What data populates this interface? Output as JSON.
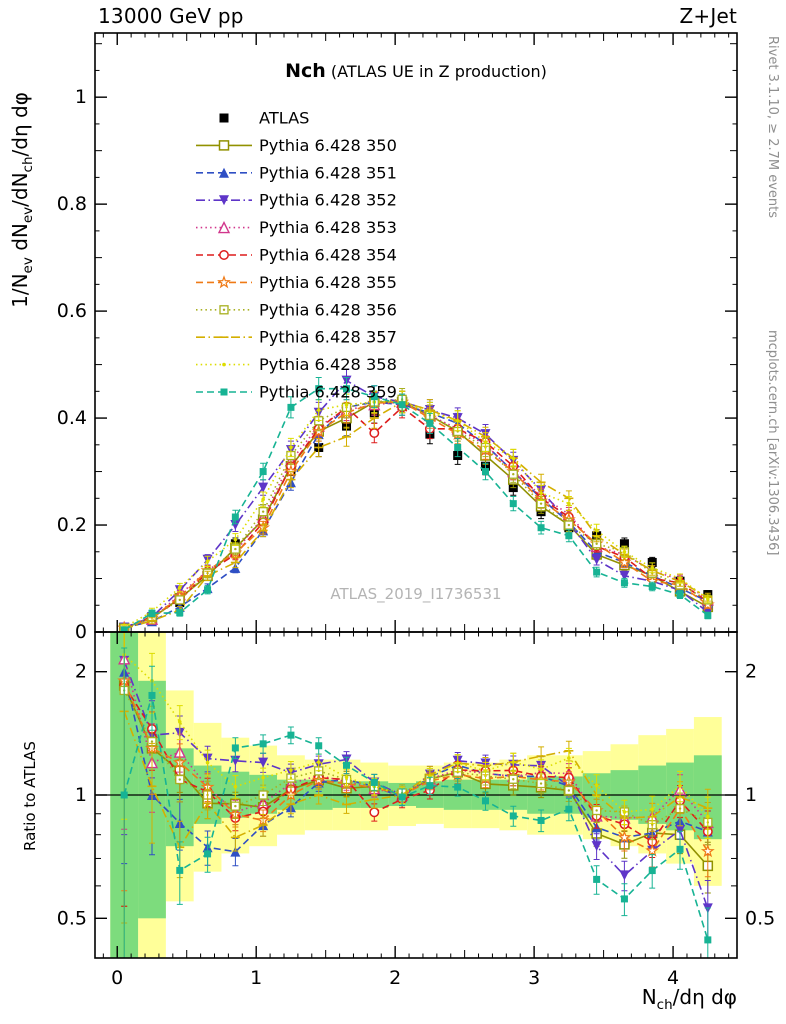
{
  "header": {
    "left": "13000 GeV pp",
    "right": "Z+Jet"
  },
  "title": {
    "main": "Nch",
    "sub": "(ATLAS UE in Z production)"
  },
  "watermark": "ATLAS_2019_I1736531",
  "side_notes": {
    "top": "Rivet 3.1.10, ≥ 2.7M events",
    "bottom": "mcplots.cern.ch [arXiv:1306.3436]"
  },
  "colors": {
    "band_yellow": "#ffff99",
    "band_green": "#7ddc7d",
    "frame": "#000000",
    "watermark": "#b4b4b4",
    "side_note": "#8f8f8f"
  },
  "axes": {
    "x": {
      "title_segments": [
        {
          "t": "N"
        },
        {
          "t": "ch",
          "sub": true
        },
        {
          "t": "/dη dφ"
        }
      ],
      "ticks": [
        0,
        1,
        2,
        3,
        4
      ],
      "min": -0.16,
      "max": 4.46
    },
    "y": {
      "title_segments": [
        {
          "t": "1/N"
        },
        {
          "t": "ev",
          "sub": true
        },
        {
          "t": " dN"
        },
        {
          "t": "ev",
          "sub": true
        },
        {
          "t": "/dN"
        },
        {
          "t": "ch",
          "sub": true
        },
        {
          "t": "/dη dφ"
        }
      ],
      "ticks": [
        0,
        0.2,
        0.4,
        0.6,
        0.8,
        1
      ],
      "min": 0,
      "max": 1.12
    },
    "ratio": {
      "title": "Ratio to ATLAS",
      "ticks": [
        0.5,
        1,
        2
      ],
      "minor": [
        0.6,
        0.7,
        0.8,
        0.9
      ],
      "min": 0.4,
      "max": 2.5
    }
  },
  "chart_data": {
    "type": "line",
    "title": "Nch (ATLAS UE in Z production)",
    "xlabel": "N_ch/dη dφ",
    "ylabel": "1/N_ev dN_ev/dN_ch/dη dφ",
    "ratio_label": "Ratio to ATLAS",
    "error_min": 0.005,
    "error_frac": 0.035,
    "x": [
      0.05,
      0.25,
      0.45,
      0.65,
      0.85,
      1.05,
      1.25,
      1.45,
      1.65,
      1.85,
      2.05,
      2.25,
      2.45,
      2.65,
      2.85,
      3.05,
      3.25,
      3.45,
      3.65,
      3.85,
      4.05,
      4.25
    ],
    "atlas": {
      "label": "ATLAS",
      "color": "#000000",
      "marker": "square-filled",
      "line": "none",
      "values": [
        0.004,
        0.02,
        0.055,
        0.11,
        0.165,
        0.225,
        0.3,
        0.345,
        0.385,
        0.41,
        0.43,
        0.37,
        0.33,
        0.31,
        0.27,
        0.225,
        0.195,
        0.18,
        0.165,
        0.13,
        0.095,
        0.07
      ]
    },
    "series": [
      {
        "label": "Pythia 6.428 350",
        "color": "#919100",
        "marker": "square-open",
        "line": "solid",
        "values": [
          0.0074,
          0.026,
          0.063,
          0.105,
          0.157,
          0.21,
          0.31,
          0.375,
          0.4,
          0.43,
          0.43,
          0.405,
          0.375,
          0.33,
          0.285,
          0.235,
          0.2,
          0.145,
          0.125,
          0.105,
          0.076,
          0.047
        ]
      },
      {
        "label": "Pythia 6.428 351",
        "color": "#2f4fc4",
        "marker": "triangle-filled",
        "line": "dash",
        "values": [
          0.008,
          0.02,
          0.047,
          0.082,
          0.12,
          0.19,
          0.28,
          0.37,
          0.42,
          0.43,
          0.425,
          0.41,
          0.39,
          0.35,
          0.3,
          0.25,
          0.205,
          0.15,
          0.13,
          0.105,
          0.082,
          0.057
        ]
      },
      {
        "label": "Pythia 6.428 352",
        "color": "#5e35c8",
        "marker": "triangle-down-filled",
        "line": "dashdot",
        "values": [
          0.0085,
          0.028,
          0.078,
          0.135,
          0.2,
          0.27,
          0.34,
          0.41,
          0.47,
          0.44,
          0.43,
          0.415,
          0.4,
          0.37,
          0.32,
          0.265,
          0.205,
          0.135,
          0.105,
          0.095,
          0.078,
          0.037
        ]
      },
      {
        "label": "Pythia 6.428 353",
        "color": "#d1368c",
        "marker": "triangle-open",
        "line": "dot",
        "values": [
          0.0086,
          0.024,
          0.07,
          0.115,
          0.15,
          0.215,
          0.32,
          0.385,
          0.415,
          0.425,
          0.43,
          0.405,
          0.38,
          0.35,
          0.3,
          0.255,
          0.22,
          0.16,
          0.145,
          0.115,
          0.098,
          0.06
        ]
      },
      {
        "label": "Pythia 6.428 354",
        "color": "#dd1c1c",
        "marker": "circle-open",
        "line": "dash",
        "values": [
          0.0074,
          0.029,
          0.06,
          0.112,
          0.145,
          0.205,
          0.31,
          0.38,
          0.42,
          0.372,
          0.42,
          0.38,
          0.38,
          0.355,
          0.31,
          0.25,
          0.215,
          0.16,
          0.14,
          0.1,
          0.092,
          0.057
        ]
      },
      {
        "label": "Pythia 6.428 355",
        "color": "#ef7a16",
        "marker": "star-open",
        "line": "dash",
        "values": [
          0.0076,
          0.026,
          0.066,
          0.115,
          0.148,
          0.195,
          0.3,
          0.375,
          0.41,
          0.428,
          0.43,
          0.4,
          0.37,
          0.34,
          0.3,
          0.245,
          0.21,
          0.165,
          0.13,
          0.095,
          0.088,
          0.051
        ]
      },
      {
        "label": "Pythia 6.428 356",
        "color": "#a8b020",
        "marker": "square-open-dot",
        "line": "dot",
        "values": [
          0.0072,
          0.027,
          0.06,
          0.11,
          0.155,
          0.225,
          0.33,
          0.395,
          0.42,
          0.43,
          0.435,
          0.405,
          0.375,
          0.345,
          0.295,
          0.24,
          0.2,
          0.165,
          0.15,
          0.11,
          0.088,
          0.06
        ]
      },
      {
        "label": "Pythia 6.428 357",
        "color": "#d4af00",
        "marker": "dash",
        "line": "dashdot",
        "values": [
          0.0064,
          0.021,
          0.041,
          0.105,
          0.13,
          0.19,
          0.285,
          0.345,
          0.365,
          0.4,
          0.43,
          0.415,
          0.395,
          0.365,
          0.325,
          0.28,
          0.25,
          0.18,
          0.145,
          0.115,
          0.094,
          0.065
        ]
      },
      {
        "label": "Pythia 6.428 358",
        "color": "#dddd00",
        "marker": "dot",
        "line": "dot",
        "values": [
          0.0088,
          0.038,
          0.083,
          0.132,
          0.173,
          0.248,
          0.345,
          0.415,
          0.425,
          0.43,
          0.43,
          0.41,
          0.395,
          0.355,
          0.325,
          0.26,
          0.24,
          0.19,
          0.15,
          0.12,
          0.1,
          0.062
        ]
      },
      {
        "label": "Pythia 6.428 359",
        "color": "#17b394",
        "marker": "square-filled-small",
        "line": "dash",
        "values": [
          0.004,
          0.035,
          0.036,
          0.079,
          0.215,
          0.3,
          0.42,
          0.455,
          0.455,
          0.44,
          0.425,
          0.39,
          0.345,
          0.3,
          0.24,
          0.195,
          0.18,
          0.112,
          0.092,
          0.085,
          0.07,
          0.031
        ]
      }
    ],
    "bands": {
      "yellow_lo": [
        0.4,
        0.4,
        0.55,
        0.65,
        0.72,
        0.75,
        0.8,
        0.82,
        0.82,
        0.82,
        0.84,
        0.85,
        0.83,
        0.83,
        0.82,
        0.8,
        0.8,
        0.78,
        0.75,
        0.72,
        0.68,
        0.6
      ],
      "yellow_hi": [
        2.5,
        2.5,
        1.8,
        1.5,
        1.38,
        1.32,
        1.25,
        1.22,
        1.22,
        1.2,
        1.18,
        1.18,
        1.2,
        1.2,
        1.22,
        1.25,
        1.25,
        1.28,
        1.33,
        1.4,
        1.45,
        1.55
      ],
      "green_lo": [
        0.4,
        0.5,
        0.75,
        0.85,
        0.88,
        0.9,
        0.92,
        0.92,
        0.93,
        0.93,
        0.94,
        0.93,
        0.92,
        0.92,
        0.92,
        0.9,
        0.9,
        0.88,
        0.87,
        0.85,
        0.82,
        0.78
      ],
      "green_hi": [
        2.5,
        1.9,
        1.3,
        1.18,
        1.14,
        1.12,
        1.09,
        1.09,
        1.08,
        1.08,
        1.07,
        1.08,
        1.09,
        1.09,
        1.09,
        1.11,
        1.11,
        1.13,
        1.15,
        1.18,
        1.2,
        1.25
      ]
    },
    "legend_position": "top-left-inside",
    "grid": false
  }
}
